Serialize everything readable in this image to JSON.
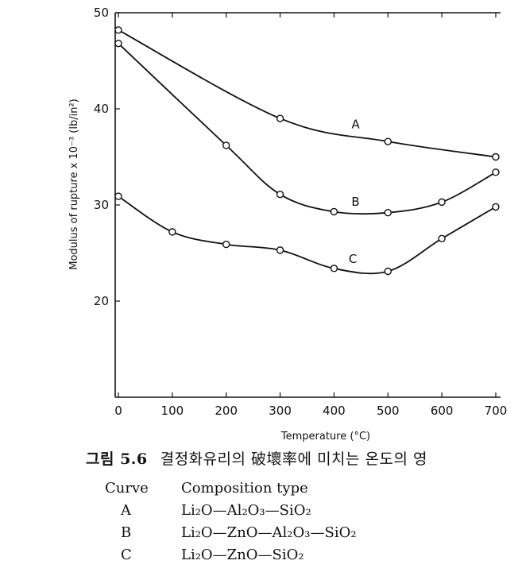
{
  "chart_data": {
    "type": "line",
    "xlabel": "Temperature (°C)",
    "ylabel": "Modulus of rupture x 10⁻³ (lb/in²)",
    "xlim": [
      0,
      700
    ],
    "ylim": [
      10,
      50
    ],
    "x_ticks": [
      "0",
      "100",
      "200",
      "300",
      "400",
      "500",
      "600",
      "700"
    ],
    "y_ticks": [
      "20",
      "30",
      "40",
      "50"
    ],
    "grid": false,
    "series": [
      {
        "name": "A",
        "x": [
          0,
          300,
          500,
          700
        ],
        "y": [
          48.2,
          39.0,
          36.6,
          35.0
        ]
      },
      {
        "name": "B",
        "x": [
          0,
          200,
          300,
          400,
          500,
          600,
          700
        ],
        "y": [
          46.8,
          36.2,
          31.1,
          29.3,
          29.2,
          30.3,
          33.4
        ]
      },
      {
        "name": "C",
        "x": [
          0,
          100,
          200,
          300,
          400,
          500,
          600,
          700
        ],
        "y": [
          30.9,
          27.2,
          25.9,
          25.3,
          23.4,
          23.1,
          26.5,
          29.8
        ]
      }
    ]
  },
  "caption": {
    "number": "그림 5.6",
    "text": "결정화유리의 破壞率에 미치는 온도의 영"
  },
  "legend": {
    "header_curve": "Curve",
    "header_type": "Composition type",
    "items": [
      {
        "curve": "A",
        "composition": "Li₂O—Al₂O₃—SiO₂"
      },
      {
        "curve": "B",
        "composition": "Li₂O—ZnO—Al₂O₃—SiO₂"
      },
      {
        "curve": "C",
        "composition": "Li₂O—ZnO—SiO₂"
      }
    ]
  }
}
